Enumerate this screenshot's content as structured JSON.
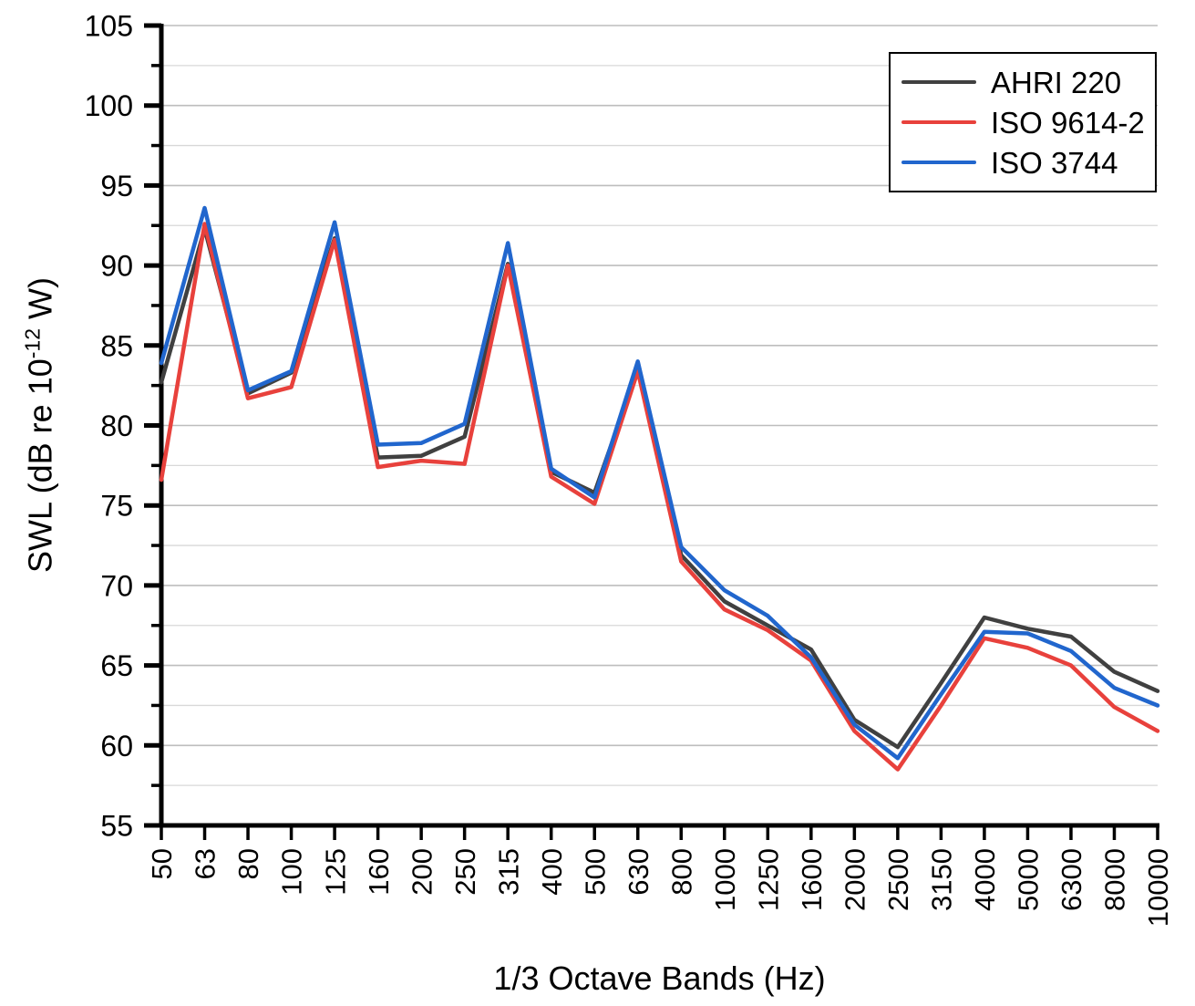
{
  "chart_data": {
    "type": "line",
    "title": "",
    "xlabel": "1/3 Octave Bands (Hz)",
    "ylabel": {
      "prefix": "SWL (dB re 10",
      "superscript": "-12",
      "suffix": " W)"
    },
    "categories": [
      "50",
      "63",
      "80",
      "100",
      "125",
      "160",
      "200",
      "250",
      "315",
      "400",
      "500",
      "630",
      "800",
      "1000",
      "1250",
      "1600",
      "2000",
      "2500",
      "3150",
      "4000",
      "5000",
      "6300",
      "8000",
      "10000"
    ],
    "y_axis": {
      "min": 55,
      "max": 105,
      "major_step": 5,
      "minor_step": 2.5,
      "tick_labels": [
        "55",
        "60",
        "65",
        "70",
        "75",
        "80",
        "85",
        "90",
        "95",
        "100",
        "105"
      ]
    },
    "grid": "horizontal",
    "legend_position": "top-right",
    "series": [
      {
        "name": "AHRI 220",
        "color": "#404040",
        "values": [
          82.7,
          92.3,
          82.0,
          83.3,
          91.7,
          78.0,
          78.1,
          79.3,
          90.1,
          77.1,
          75.8,
          83.5,
          71.9,
          69.0,
          67.5,
          66.0,
          61.6,
          59.9,
          63.9,
          68.0,
          67.3,
          66.8,
          64.6,
          63.4
        ]
      },
      {
        "name": "ISO 9614-2",
        "color": "#E8413C",
        "values": [
          76.6,
          92.6,
          81.7,
          82.4,
          91.6,
          77.4,
          77.8,
          77.6,
          90.0,
          76.8,
          75.1,
          83.4,
          71.5,
          68.5,
          67.2,
          65.3,
          60.9,
          58.5,
          62.5,
          66.7,
          66.1,
          65.0,
          62.4,
          60.9
        ]
      },
      {
        "name": "ISO 3744",
        "color": "#2166CD",
        "values": [
          83.9,
          93.6,
          82.2,
          83.4,
          92.7,
          78.8,
          78.9,
          80.1,
          91.4,
          77.3,
          75.5,
          84.0,
          72.4,
          69.7,
          68.1,
          65.5,
          61.3,
          59.2,
          63.2,
          67.1,
          67.0,
          65.9,
          63.6,
          62.5
        ]
      }
    ],
    "colors": {
      "axis": "#000000",
      "grid_major": "#bdbdbd",
      "grid_minor": "#d8d8d8",
      "background": "#ffffff"
    }
  }
}
